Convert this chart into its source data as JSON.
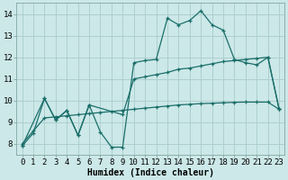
{
  "title": "",
  "xlabel": "Humidex (Indice chaleur)",
  "ylabel": "",
  "bg_color": "#cce8e8",
  "grid_color": "#aacccc",
  "line_color": "#1a6e6a",
  "xlim": [
    -0.5,
    23.5
  ],
  "ylim": [
    7.5,
    14.5
  ],
  "xticks": [
    0,
    1,
    2,
    3,
    4,
    5,
    6,
    7,
    8,
    9,
    10,
    11,
    12,
    13,
    14,
    15,
    16,
    17,
    18,
    19,
    20,
    21,
    22,
    23
  ],
  "yticks": [
    8,
    9,
    10,
    11,
    12,
    13,
    14
  ],
  "line1_x": [
    0,
    1,
    2,
    3,
    4,
    5,
    6,
    7,
    8,
    9,
    10,
    11,
    12,
    13,
    14,
    15,
    16,
    17,
    18,
    19,
    20,
    21,
    22,
    23
  ],
  "line1_y": [
    7.9,
    8.5,
    10.1,
    9.1,
    9.55,
    8.4,
    9.8,
    8.55,
    7.85,
    7.85,
    11.75,
    11.85,
    11.9,
    13.8,
    13.5,
    13.7,
    14.15,
    13.5,
    13.25,
    11.9,
    11.75,
    11.65,
    12.0,
    9.6
  ],
  "line2_x": [
    0,
    2,
    3,
    4,
    5,
    6,
    9,
    10,
    11,
    12,
    13,
    14,
    15,
    16,
    17,
    18,
    19,
    20,
    21,
    22,
    23
  ],
  "line2_y": [
    7.9,
    10.1,
    9.1,
    9.55,
    8.4,
    9.8,
    9.35,
    11.0,
    11.1,
    11.2,
    11.3,
    11.45,
    11.5,
    11.6,
    11.7,
    11.8,
    11.85,
    11.9,
    11.95,
    12.0,
    9.6
  ],
  "line3_x": [
    0,
    1,
    2,
    3,
    4,
    5,
    6,
    7,
    8,
    9,
    10,
    11,
    12,
    13,
    14,
    15,
    16,
    17,
    18,
    19,
    20,
    21,
    22,
    23
  ],
  "line3_y": [
    8.0,
    8.6,
    9.2,
    9.25,
    9.3,
    9.35,
    9.4,
    9.45,
    9.5,
    9.55,
    9.6,
    9.65,
    9.7,
    9.75,
    9.8,
    9.83,
    9.86,
    9.88,
    9.9,
    9.92,
    9.93,
    9.93,
    9.93,
    9.6
  ],
  "marker": "+",
  "markersize": 3,
  "markeredgewidth": 0.9,
  "linewidth": 0.9,
  "xlabel_fontsize": 7,
  "tick_fontsize": 6.5
}
